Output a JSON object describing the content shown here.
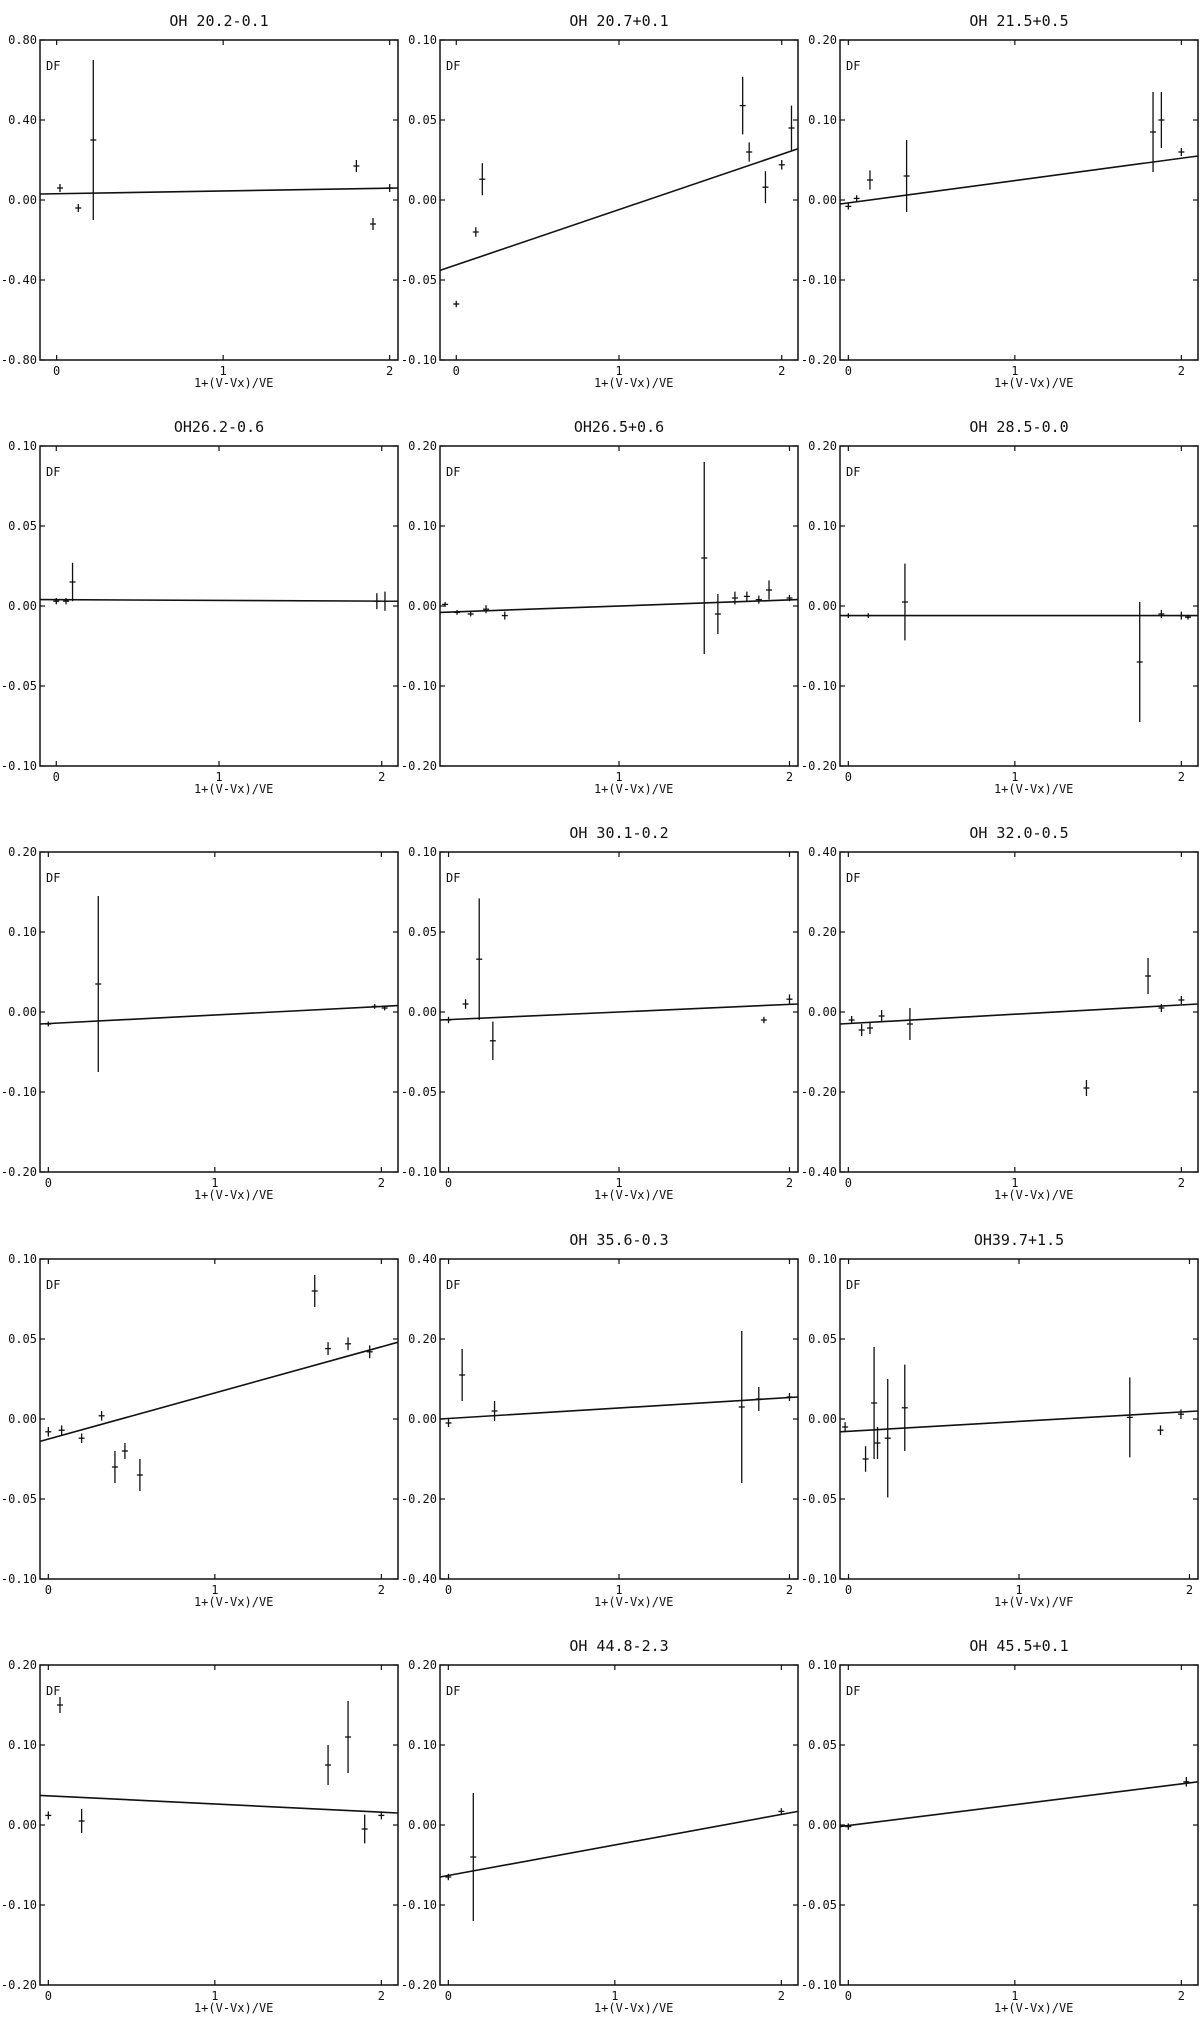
{
  "chart_data": [
    {
      "type": "scatter",
      "title": "OH 20.2-0.1",
      "xlabel": "1+(V-Vx)/VE",
      "ylabel": "DF",
      "ylim": [
        -0.8,
        0.8
      ],
      "xlim": [
        -0.1,
        2.05
      ],
      "yticks": [
        "0.80",
        "0.40",
        "0.00",
        "-0.40",
        "-0.80"
      ],
      "yticks_vals": [
        0.8,
        0.4,
        0.0,
        -0.4,
        -0.8
      ],
      "xticks": [
        "0",
        "1",
        "2"
      ],
      "xticks_vals": [
        0,
        1,
        2
      ],
      "fit": [
        0.03,
        0.06
      ],
      "points": [
        {
          "x": 0.02,
          "y": 0.06,
          "e": 0.02
        },
        {
          "x": 0.13,
          "y": -0.04,
          "e": 0.02
        },
        {
          "x": 0.22,
          "y": 0.3,
          "e": 0.4
        },
        {
          "x": 1.8,
          "y": 0.17,
          "e": 0.03
        },
        {
          "x": 1.9,
          "y": -0.12,
          "e": 0.03
        },
        {
          "x": 2.0,
          "y": 0.06,
          "e": 0.02
        }
      ]
    },
    {
      "type": "scatter",
      "title": "OH 20.7+0.1",
      "xlabel": "1+(V-Vx)/VE",
      "ylabel": "DF",
      "ylim": [
        -0.1,
        0.1
      ],
      "xlim": [
        -0.1,
        2.1
      ],
      "yticks": [
        "0.10",
        "0.05",
        "0.00",
        "-0.05",
        "-0.10"
      ],
      "yticks_vals": [
        0.1,
        0.05,
        0.0,
        -0.05,
        -0.1
      ],
      "xticks": [
        "0",
        "1",
        "2"
      ],
      "xticks_vals": [
        0,
        1,
        2
      ],
      "fit": [
        -0.044,
        0.032
      ],
      "points": [
        {
          "x": 0.0,
          "y": -0.065,
          "e": 0.002
        },
        {
          "x": 0.12,
          "y": -0.02,
          "e": 0.003
        },
        {
          "x": 0.16,
          "y": 0.013,
          "e": 0.01
        },
        {
          "x": 1.76,
          "y": 0.059,
          "e": 0.018
        },
        {
          "x": 1.8,
          "y": 0.03,
          "e": 0.006
        },
        {
          "x": 1.9,
          "y": 0.008,
          "e": 0.01
        },
        {
          "x": 2.0,
          "y": 0.022,
          "e": 0.003
        },
        {
          "x": 2.06,
          "y": 0.045,
          "e": 0.014
        }
      ]
    },
    {
      "type": "scatter",
      "title": "OH 21.5+0.5",
      "xlabel": "1+(V-Vx)/VE",
      "ylabel": "DF",
      "ylim": [
        -0.2,
        0.2
      ],
      "xlim": [
        -0.05,
        2.1
      ],
      "yticks": [
        "0.20",
        "0.10",
        "0.00",
        "-0.10",
        "-0.20"
      ],
      "yticks_vals": [
        0.2,
        0.1,
        0.0,
        -0.1,
        -0.2
      ],
      "xticks": [
        "0",
        "1",
        "2"
      ],
      "xticks_vals": [
        0,
        1,
        2
      ],
      "fit": [
        -0.005,
        0.055
      ],
      "points": [
        {
          "x": 0.0,
          "y": -0.008,
          "e": 0.004
        },
        {
          "x": 0.05,
          "y": 0.002,
          "e": 0.004
        },
        {
          "x": 0.13,
          "y": 0.025,
          "e": 0.012
        },
        {
          "x": 0.35,
          "y": 0.03,
          "e": 0.045
        },
        {
          "x": 1.83,
          "y": 0.085,
          "e": 0.05
        },
        {
          "x": 1.88,
          "y": 0.1,
          "e": 0.035
        },
        {
          "x": 2.0,
          "y": 0.06,
          "e": 0.005
        }
      ]
    },
    {
      "type": "scatter",
      "title": "OH26.2-0.6",
      "xlabel": "1+(V-Vx)/VE",
      "ylabel": "DF",
      "ylim": [
        -0.1,
        0.1
      ],
      "xlim": [
        -0.1,
        2.1
      ],
      "yticks": [
        "0.10",
        "0.05",
        "0.00",
        "-0.05",
        "-0.10"
      ],
      "yticks_vals": [
        0.1,
        0.05,
        0.0,
        -0.05,
        -0.1
      ],
      "xticks": [
        "0",
        "1",
        "2"
      ],
      "xticks_vals": [
        0,
        1,
        2
      ],
      "fit": [
        0.004,
        0.003
      ],
      "points": [
        {
          "x": 0.0,
          "y": 0.003,
          "e": 0.002
        },
        {
          "x": 0.06,
          "y": 0.003,
          "e": 0.002
        },
        {
          "x": 0.1,
          "y": 0.015,
          "e": 0.012
        },
        {
          "x": 1.97,
          "y": 0.003,
          "e": 0.005
        },
        {
          "x": 2.02,
          "y": 0.003,
          "e": 0.006
        }
      ]
    },
    {
      "type": "scatter",
      "title": "OH26.5+0.6",
      "xlabel": "1+(V-Vx)/VE",
      "ylabel": "DF",
      "ylim": [
        -0.2,
        0.2
      ],
      "xlim": [
        -0.05,
        2.05
      ],
      "yticks": [
        "0.20",
        "0.10",
        "0.00",
        "-0.10",
        "-0.20"
      ],
      "yticks_vals": [
        0.2,
        0.1,
        0.0,
        -0.1,
        -0.2
      ],
      "xticks": [
        "1",
        "2"
      ],
      "xticks_vals": [
        1,
        2
      ],
      "fit": [
        -0.008,
        0.008
      ],
      "points": [
        {
          "x": -0.02,
          "y": 0.002,
          "e": 0.003
        },
        {
          "x": 0.05,
          "y": -0.008,
          "e": 0.003
        },
        {
          "x": 0.13,
          "y": -0.01,
          "e": 0.003
        },
        {
          "x": 0.22,
          "y": -0.004,
          "e": 0.005
        },
        {
          "x": 0.33,
          "y": -0.012,
          "e": 0.005
        },
        {
          "x": 1.5,
          "y": 0.06,
          "e": 0.12
        },
        {
          "x": 1.58,
          "y": -0.01,
          "e": 0.025
        },
        {
          "x": 1.68,
          "y": 0.01,
          "e": 0.008
        },
        {
          "x": 1.75,
          "y": 0.012,
          "e": 0.006
        },
        {
          "x": 1.82,
          "y": 0.008,
          "e": 0.005
        },
        {
          "x": 1.88,
          "y": 0.02,
          "e": 0.012
        },
        {
          "x": 2.0,
          "y": 0.01,
          "e": 0.004
        }
      ]
    },
    {
      "type": "scatter",
      "title": "OH 28.5-0.0",
      "xlabel": "1+(V-Vx)/VE",
      "ylabel": "DF",
      "ylim": [
        -0.2,
        0.2
      ],
      "xlim": [
        -0.05,
        2.1
      ],
      "yticks": [
        "0.20",
        "0.10",
        "0.00",
        "-0.10",
        "-0.20"
      ],
      "yticks_vals": [
        0.2,
        0.1,
        0.0,
        -0.1,
        -0.2
      ],
      "xticks": [
        "0",
        "1",
        "2"
      ],
      "xticks_vals": [
        0,
        1,
        2
      ],
      "fit": [
        -0.012,
        -0.012
      ],
      "points": [
        {
          "x": 0.0,
          "y": -0.012,
          "e": 0.003
        },
        {
          "x": 0.12,
          "y": -0.012,
          "e": 0.003
        },
        {
          "x": 0.34,
          "y": 0.005,
          "e": 0.048
        },
        {
          "x": 1.75,
          "y": -0.07,
          "e": 0.075
        },
        {
          "x": 1.88,
          "y": -0.01,
          "e": 0.005
        },
        {
          "x": 2.0,
          "y": -0.012,
          "e": 0.005
        },
        {
          "x": 2.04,
          "y": -0.014,
          "e": 0.003
        }
      ]
    },
    {
      "type": "scatter",
      "title": "",
      "xlabel": "1+(V-Vx)/VE",
      "ylabel": "DF",
      "ylim": [
        -0.2,
        0.2
      ],
      "xlim": [
        -0.05,
        2.1
      ],
      "yticks": [
        "0.20",
        "0.10",
        "0.00",
        "-0.10",
        "-0.20"
      ],
      "yticks_vals": [
        0.2,
        0.1,
        0.0,
        -0.1,
        -0.2
      ],
      "xticks": [
        "0",
        "1",
        "2"
      ],
      "xticks_vals": [
        0,
        1,
        2
      ],
      "fit": [
        -0.015,
        0.008
      ],
      "points": [
        {
          "x": 0.0,
          "y": -0.015,
          "e": 0.003
        },
        {
          "x": 0.3,
          "y": 0.035,
          "e": 0.11
        },
        {
          "x": 1.96,
          "y": 0.007,
          "e": 0.003
        },
        {
          "x": 2.02,
          "y": 0.005,
          "e": 0.003
        }
      ]
    },
    {
      "type": "scatter",
      "title": "OH 30.1-0.2",
      "xlabel": "1+(V-Vx)/VE",
      "ylabel": "DF",
      "ylim": [
        -0.1,
        0.1
      ],
      "xlim": [
        -0.05,
        2.05
      ],
      "yticks": [
        "0.10",
        "0.05",
        "0.00",
        "-0.05",
        "-0.10"
      ],
      "yticks_vals": [
        0.1,
        0.05,
        0.0,
        -0.05,
        -0.1
      ],
      "xticks": [
        "0",
        "1",
        "2"
      ],
      "xticks_vals": [
        0,
        1,
        2
      ],
      "fit": [
        -0.005,
        0.005
      ],
      "points": [
        {
          "x": 0.0,
          "y": -0.005,
          "e": 0.002
        },
        {
          "x": 0.1,
          "y": 0.005,
          "e": 0.003
        },
        {
          "x": 0.18,
          "y": 0.033,
          "e": 0.038
        },
        {
          "x": 0.26,
          "y": -0.018,
          "e": 0.012
        },
        {
          "x": 1.85,
          "y": -0.005,
          "e": 0.002
        },
        {
          "x": 2.0,
          "y": 0.008,
          "e": 0.003
        }
      ]
    },
    {
      "type": "scatter",
      "title": "OH 32.0-0.5",
      "xlabel": "1+(V-Vx)/VE",
      "ylabel": "DF",
      "ylim": [
        -0.4,
        0.4
      ],
      "xlim": [
        -0.05,
        2.1
      ],
      "yticks": [
        "0.40",
        "0.20",
        "0.00",
        "-0.20",
        "-0.40"
      ],
      "yticks_vals": [
        0.4,
        0.2,
        0.0,
        -0.2,
        -0.4
      ],
      "xticks": [
        "0",
        "1",
        "2"
      ],
      "xticks_vals": [
        0,
        1,
        2
      ],
      "fit": [
        -0.03,
        0.02
      ],
      "points": [
        {
          "x": 0.02,
          "y": -0.02,
          "e": 0.01
        },
        {
          "x": 0.08,
          "y": -0.045,
          "e": 0.015
        },
        {
          "x": 0.13,
          "y": -0.04,
          "e": 0.015
        },
        {
          "x": 0.2,
          "y": -0.01,
          "e": 0.015
        },
        {
          "x": 0.37,
          "y": -0.03,
          "e": 0.04
        },
        {
          "x": 1.43,
          "y": -0.19,
          "e": 0.02
        },
        {
          "x": 1.8,
          "y": 0.09,
          "e": 0.045
        },
        {
          "x": 1.88,
          "y": 0.01,
          "e": 0.01
        },
        {
          "x": 2.0,
          "y": 0.03,
          "e": 0.01
        }
      ]
    },
    {
      "type": "scatter",
      "title": "",
      "xlabel": "1+(V-Vx)/VE",
      "ylabel": "DF",
      "ylim": [
        -0.1,
        0.1
      ],
      "xlim": [
        -0.05,
        2.1
      ],
      "yticks": [
        "0.10",
        "0.05",
        "0.00",
        "-0.05",
        "-0.10"
      ],
      "yticks_vals": [
        0.1,
        0.05,
        0.0,
        -0.05,
        -0.1
      ],
      "xticks": [
        "0",
        "1",
        "2"
      ],
      "xticks_vals": [
        0,
        1,
        2
      ],
      "fit": [
        -0.014,
        0.048
      ],
      "points": [
        {
          "x": 0.0,
          "y": -0.008,
          "e": 0.003
        },
        {
          "x": 0.08,
          "y": -0.007,
          "e": 0.003
        },
        {
          "x": 0.2,
          "y": -0.012,
          "e": 0.003
        },
        {
          "x": 0.32,
          "y": 0.002,
          "e": 0.003
        },
        {
          "x": 0.4,
          "y": -0.03,
          "e": 0.01
        },
        {
          "x": 0.46,
          "y": -0.02,
          "e": 0.005
        },
        {
          "x": 0.55,
          "y": -0.035,
          "e": 0.01
        },
        {
          "x": 1.6,
          "y": 0.08,
          "e": 0.01
        },
        {
          "x": 1.68,
          "y": 0.044,
          "e": 0.004
        },
        {
          "x": 1.8,
          "y": 0.047,
          "e": 0.004
        },
        {
          "x": 1.93,
          "y": 0.042,
          "e": 0.004
        }
      ]
    },
    {
      "type": "scatter",
      "title": "OH 35.6-0.3",
      "xlabel": "1+(V-Vx)/VE",
      "ylabel": "DF",
      "ylim": [
        -0.4,
        0.4
      ],
      "xlim": [
        -0.05,
        2.05
      ],
      "yticks": [
        "0.40",
        "0.20",
        "0.00",
        "-0.20",
        "-0.40"
      ],
      "yticks_vals": [
        0.4,
        0.2,
        0.0,
        -0.2,
        -0.4
      ],
      "xticks": [
        "0",
        "1",
        "2"
      ],
      "xticks_vals": [
        0,
        1,
        2
      ],
      "fit": [
        0.0,
        0.055
      ],
      "points": [
        {
          "x": 0.0,
          "y": -0.01,
          "e": 0.01
        },
        {
          "x": 0.08,
          "y": 0.11,
          "e": 0.065
        },
        {
          "x": 0.27,
          "y": 0.02,
          "e": 0.025
        },
        {
          "x": 1.72,
          "y": 0.03,
          "e": 0.19
        },
        {
          "x": 1.82,
          "y": 0.05,
          "e": 0.03
        },
        {
          "x": 2.0,
          "y": 0.055,
          "e": 0.01
        }
      ]
    },
    {
      "type": "scatter",
      "title": "OH39.7+1.5",
      "xlabel": "1+(V-Vx)/VF",
      "ylabel": "DF",
      "ylim": [
        -0.1,
        0.1
      ],
      "xlim": [
        -0.05,
        2.05
      ],
      "yticks": [
        "0.10",
        "0.05",
        "0.00",
        "-0.05",
        "-0.10"
      ],
      "yticks_vals": [
        0.1,
        0.05,
        0.0,
        -0.05,
        -0.1
      ],
      "xticks": [
        "0",
        "1",
        "2"
      ],
      "xticks_vals": [
        0,
        1,
        2
      ],
      "fit": [
        -0.008,
        0.005
      ],
      "points": [
        {
          "x": -0.02,
          "y": -0.005,
          "e": 0.003
        },
        {
          "x": 0.1,
          "y": -0.025,
          "e": 0.008
        },
        {
          "x": 0.15,
          "y": 0.01,
          "e": 0.035
        },
        {
          "x": 0.17,
          "y": -0.015,
          "e": 0.01
        },
        {
          "x": 0.23,
          "y": -0.012,
          "e": 0.037
        },
        {
          "x": 0.33,
          "y": 0.007,
          "e": 0.027
        },
        {
          "x": 1.65,
          "y": 0.001,
          "e": 0.025
        },
        {
          "x": 1.83,
          "y": -0.007,
          "e": 0.003
        },
        {
          "x": 1.95,
          "y": 0.003,
          "e": 0.003
        }
      ]
    },
    {
      "type": "scatter",
      "title": "",
      "xlabel": "1+(V-Vx)/VE",
      "ylabel": "DF",
      "ylim": [
        -0.2,
        0.2
      ],
      "xlim": [
        -0.05,
        2.1
      ],
      "yticks": [
        "0.20",
        "0.10",
        "0.00",
        "-0.10",
        "-0.20"
      ],
      "yticks_vals": [
        0.2,
        0.1,
        0.0,
        -0.1,
        -0.2
      ],
      "xticks": [
        "0",
        "1",
        "2"
      ],
      "xticks_vals": [
        0,
        1,
        2
      ],
      "fit": [
        0.037,
        0.015
      ],
      "points": [
        {
          "x": 0.0,
          "y": 0.012,
          "e": 0.005
        },
        {
          "x": 0.07,
          "y": 0.15,
          "e": 0.01
        },
        {
          "x": 0.2,
          "y": 0.005,
          "e": 0.015
        },
        {
          "x": 1.68,
          "y": 0.075,
          "e": 0.025
        },
        {
          "x": 1.8,
          "y": 0.11,
          "e": 0.045
        },
        {
          "x": 1.9,
          "y": -0.005,
          "e": 0.018
        },
        {
          "x": 2.0,
          "y": 0.012,
          "e": 0.005
        }
      ]
    },
    {
      "type": "scatter",
      "title": "OH 44.8-2.3",
      "xlabel": "1+(V-Vx)/VE",
      "ylabel": "DF",
      "ylim": [
        -0.2,
        0.2
      ],
      "xlim": [
        -0.05,
        2.1
      ],
      "yticks": [
        "0.20",
        "0.10",
        "0.00",
        "-0.10",
        "-0.20"
      ],
      "yticks_vals": [
        0.2,
        0.1,
        0.0,
        -0.1,
        -0.2
      ],
      "xticks": [
        "0",
        "1",
        "2"
      ],
      "xticks_vals": [
        0,
        1,
        2
      ],
      "fit": [
        -0.065,
        0.017
      ],
      "points": [
        {
          "x": 0.0,
          "y": -0.065,
          "e": 0.004
        },
        {
          "x": 0.15,
          "y": -0.04,
          "e": 0.08
        },
        {
          "x": 2.0,
          "y": 0.017,
          "e": 0.004
        }
      ]
    },
    {
      "type": "scatter",
      "title": "OH 45.5+0.1",
      "xlabel": "1+(V-Vx)/VE",
      "ylabel": "DF",
      "ylim": [
        -0.1,
        0.1
      ],
      "xlim": [
        -0.05,
        2.1
      ],
      "yticks": [
        "0.10",
        "0.05",
        "0.00",
        "-0.05",
        "-0.10"
      ],
      "yticks_vals": [
        0.1,
        0.05,
        0.0,
        -0.05,
        -0.1
      ],
      "xticks": [
        "0",
        "1",
        "2"
      ],
      "xticks_vals": [
        0,
        1,
        2
      ],
      "fit": [
        -0.001,
        0.027
      ],
      "points": [
        {
          "x": 0.0,
          "y": -0.001,
          "e": 0.002
        },
        {
          "x": 2.03,
          "y": 0.027,
          "e": 0.003
        }
      ]
    }
  ]
}
